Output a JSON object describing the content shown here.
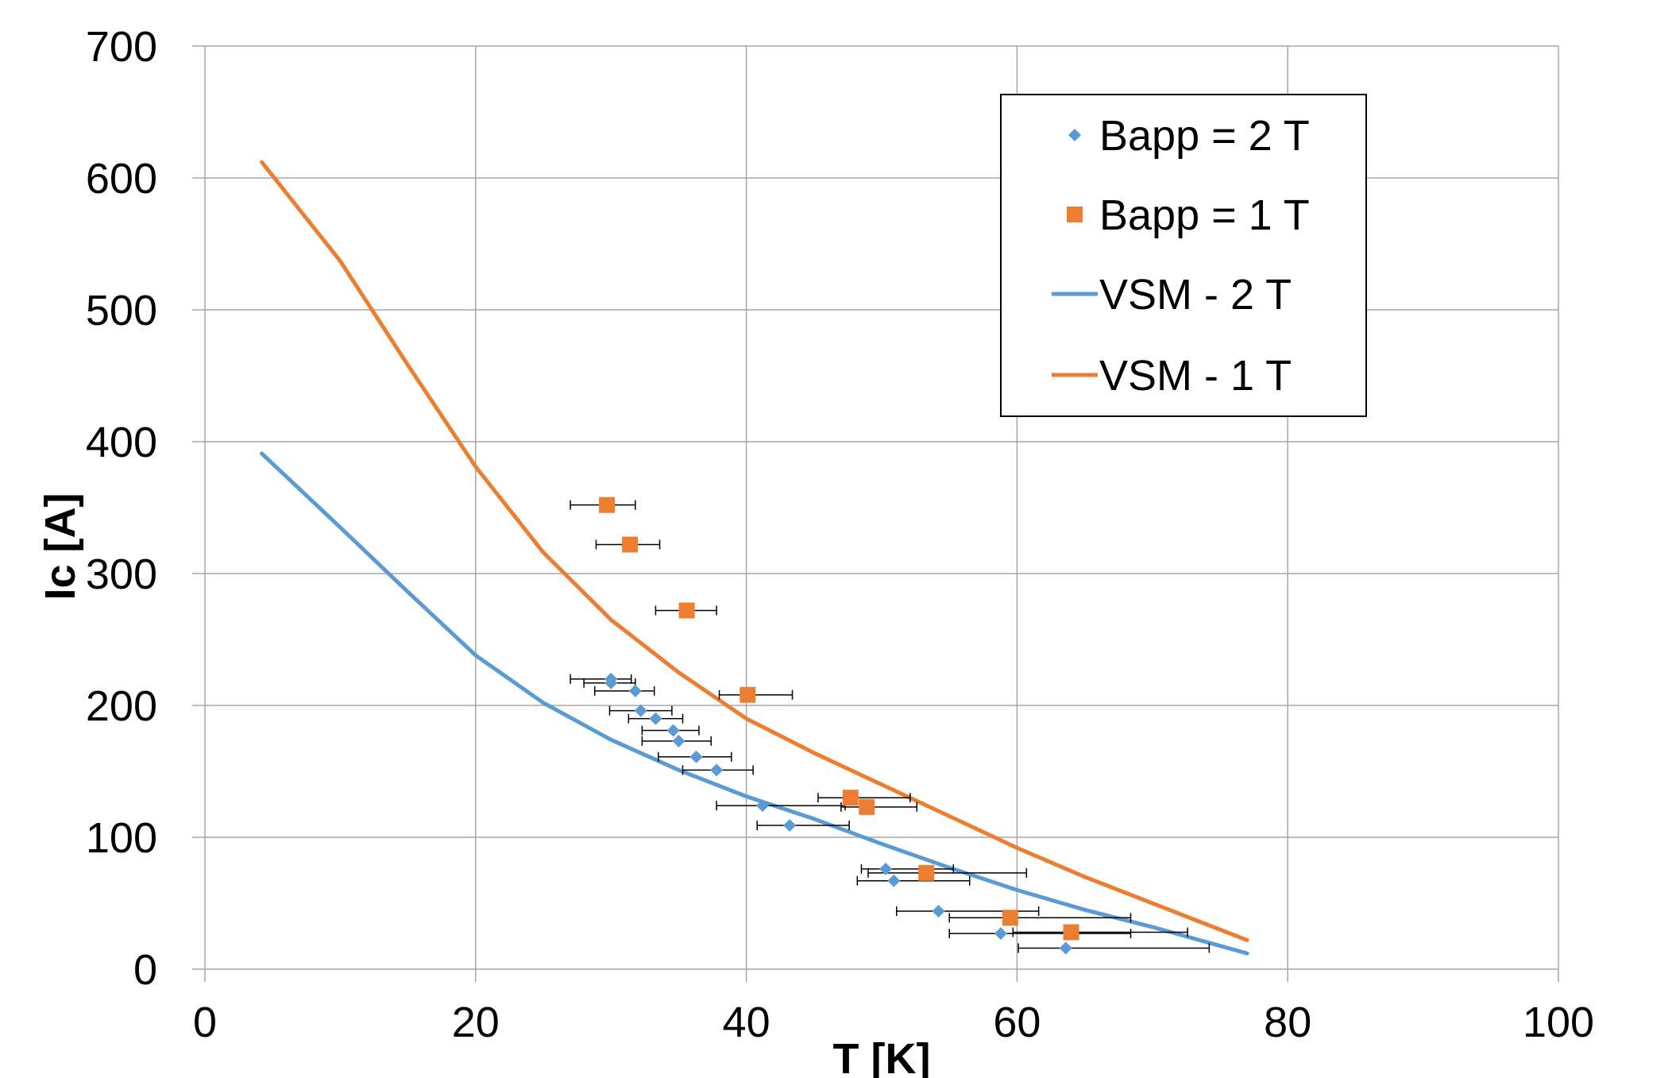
{
  "chart_data": {
    "type": "scatter",
    "xlabel": "T [K]",
    "ylabel": "Ic [A]",
    "xlim": [
      0,
      100
    ],
    "ylim": [
      0,
      700
    ],
    "x_ticks": [
      "0",
      "20",
      "40",
      "60",
      "80",
      "100"
    ],
    "y_ticks": [
      "0",
      "100",
      "200",
      "300",
      "400",
      "500",
      "600",
      "700"
    ],
    "grid": true,
    "legend_position": "top-right",
    "series": [
      {
        "name": "Bapp = 2 T",
        "kind": "scatter",
        "marker": "diamond",
        "color": "#5B9BD5",
        "points": [
          {
            "x": 30.0,
            "y": 220,
            "xerr": [
              27.0,
              31.5
            ]
          },
          {
            "x": 30.0,
            "y": 217,
            "xerr": [
              28.0,
              31.8
            ]
          },
          {
            "x": 31.8,
            "y": 211,
            "xerr": [
              28.8,
              33.2
            ]
          },
          {
            "x": 32.2,
            "y": 196,
            "xerr": [
              29.9,
              34.5
            ]
          },
          {
            "x": 33.3,
            "y": 190,
            "xerr": [
              31.3,
              35.3
            ]
          },
          {
            "x": 34.6,
            "y": 181,
            "xerr": [
              32.3,
              36.5
            ]
          },
          {
            "x": 35.0,
            "y": 173,
            "xerr": [
              32.3,
              37.4
            ]
          },
          {
            "x": 36.3,
            "y": 161,
            "xerr": [
              33.5,
              38.9
            ]
          },
          {
            "x": 37.8,
            "y": 151,
            "xerr": [
              35.3,
              40.5
            ]
          },
          {
            "x": 41.2,
            "y": 124,
            "xerr": [
              37.8,
              47.3
            ]
          },
          {
            "x": 43.2,
            "y": 109,
            "xerr": [
              40.8,
              47.6
            ]
          },
          {
            "x": 50.3,
            "y": 76,
            "xerr": [
              48.5,
              55.3
            ]
          },
          {
            "x": 50.9,
            "y": 67,
            "xerr": [
              48.2,
              56.5
            ]
          },
          {
            "x": 54.2,
            "y": 44,
            "xerr": [
              51.1,
              61.6
            ]
          },
          {
            "x": 58.8,
            "y": 27,
            "xerr": [
              55.0,
              68.4
            ]
          },
          {
            "x": 63.6,
            "y": 16,
            "xerr": [
              60.1,
              74.2
            ]
          }
        ]
      },
      {
        "name": "Bapp = 1 T",
        "kind": "scatter",
        "marker": "square",
        "color": "#ED7D31",
        "points": [
          {
            "x": 29.7,
            "y": 352,
            "xerr": [
              27.0,
              31.8
            ]
          },
          {
            "x": 31.4,
            "y": 322,
            "xerr": [
              28.9,
              33.6
            ]
          },
          {
            "x": 35.6,
            "y": 272,
            "xerr": [
              33.3,
              37.8
            ]
          },
          {
            "x": 40.1,
            "y": 208,
            "xerr": [
              38.0,
              43.4
            ]
          },
          {
            "x": 47.7,
            "y": 130,
            "xerr": [
              45.3,
              52.1
            ]
          },
          {
            "x": 48.9,
            "y": 123,
            "xerr": [
              47.0,
              52.6
            ]
          },
          {
            "x": 53.3,
            "y": 73,
            "xerr": [
              49.0,
              60.7
            ]
          },
          {
            "x": 59.5,
            "y": 39,
            "xerr": [
              55.0,
              68.4
            ]
          },
          {
            "x": 64.0,
            "y": 28,
            "xerr": [
              59.7,
              72.6
            ]
          }
        ]
      },
      {
        "name": "VSM - 2 T",
        "kind": "line",
        "color": "#5B9BD5",
        "points": [
          {
            "x": 4.2,
            "y": 391
          },
          {
            "x": 10,
            "y": 335
          },
          {
            "x": 15,
            "y": 286
          },
          {
            "x": 20,
            "y": 238
          },
          {
            "x": 25,
            "y": 202
          },
          {
            "x": 30,
            "y": 174
          },
          {
            "x": 35,
            "y": 151
          },
          {
            "x": 40,
            "y": 131
          },
          {
            "x": 45,
            "y": 114
          },
          {
            "x": 50,
            "y": 95
          },
          {
            "x": 55,
            "y": 77
          },
          {
            "x": 60,
            "y": 60
          },
          {
            "x": 65,
            "y": 45
          },
          {
            "x": 70,
            "y": 32
          },
          {
            "x": 77,
            "y": 12
          }
        ]
      },
      {
        "name": "VSM - 1 T",
        "kind": "line",
        "color": "#ED7D31",
        "points": [
          {
            "x": 4.2,
            "y": 612
          },
          {
            "x": 10,
            "y": 537
          },
          {
            "x": 15,
            "y": 458
          },
          {
            "x": 20,
            "y": 381
          },
          {
            "x": 25,
            "y": 316
          },
          {
            "x": 30,
            "y": 265
          },
          {
            "x": 35,
            "y": 225
          },
          {
            "x": 40,
            "y": 190
          },
          {
            "x": 45,
            "y": 164
          },
          {
            "x": 50,
            "y": 140
          },
          {
            "x": 55,
            "y": 116
          },
          {
            "x": 60,
            "y": 92
          },
          {
            "x": 65,
            "y": 70
          },
          {
            "x": 70,
            "y": 50
          },
          {
            "x": 77,
            "y": 22
          }
        ]
      }
    ]
  }
}
